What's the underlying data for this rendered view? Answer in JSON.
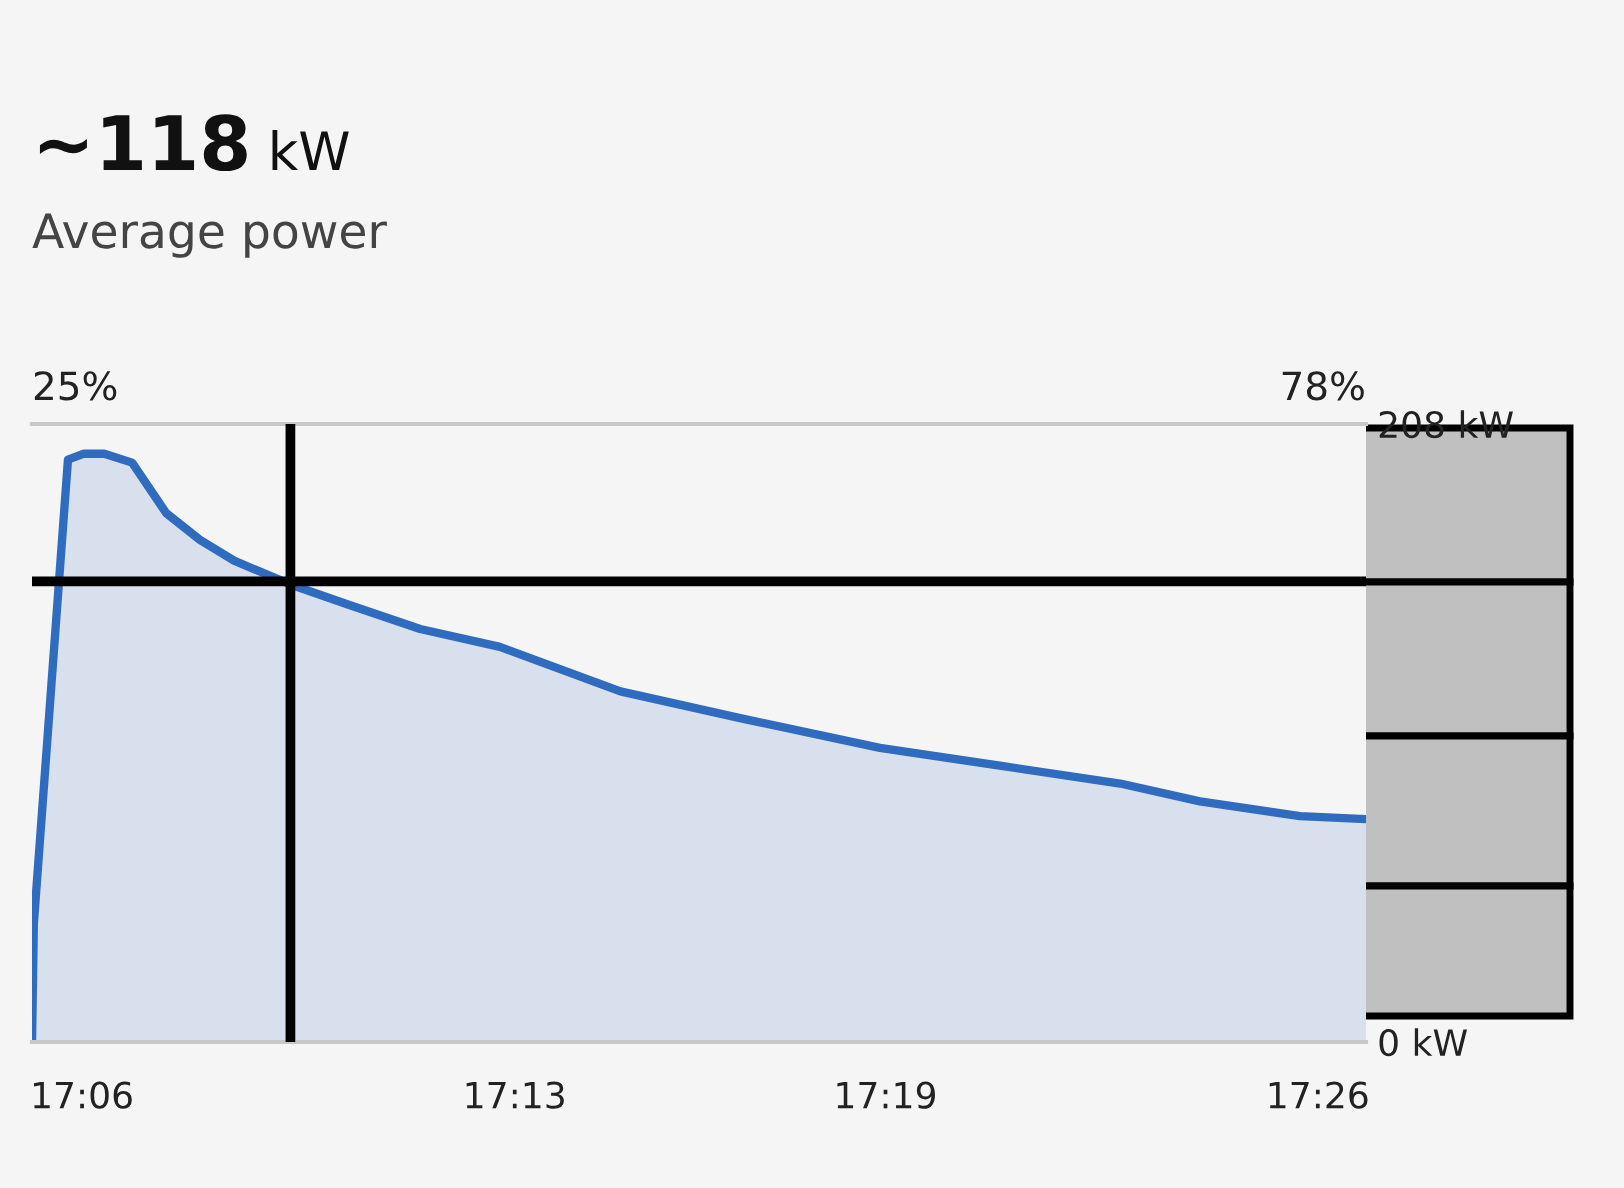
{
  "chart_data": {
    "type": "area",
    "title": "~118 kW",
    "subtitle": "Average power",
    "annotations": [
      "25%",
      "78%"
    ],
    "x": [
      17.0865,
      17.087,
      17.0962,
      17.1005,
      17.106,
      17.1135,
      17.1227,
      17.1318,
      17.141,
      17.1562,
      17.1723,
      17.1912,
      17.2127,
      17.2452,
      17.2775,
      17.3152,
      17.3475,
      17.38,
      17.4015,
      17.4285,
      17.4463
    ],
    "series": [
      {
        "color": "#2f6bbf",
        "values": [
          0,
          40,
          196,
          198,
          198,
          195,
          178,
          169,
          162,
          154,
          147,
          139,
          133,
          118,
          109,
          99,
          93,
          87,
          81,
          76,
          75
        ]
      }
    ],
    "xlim": [
      17.0865,
      17.4463
    ],
    "xticks": [
      {
        "value": 17.1,
        "label": "17:06"
      },
      {
        "value": 17.2167,
        "label": "17:13"
      },
      {
        "value": 17.3167,
        "label": "17:19"
      },
      {
        "value": 17.4333,
        "label": "17:26"
      }
    ],
    "ylim": [
      0,
      208
    ],
    "yticks": [
      {
        "value": 0,
        "label": "0 kW"
      },
      {
        "value": 208,
        "label": "208 kW"
      }
    ],
    "ref_lines": [
      {
        "axis": "y",
        "value": 155,
        "color": "#000000"
      },
      {
        "axis": "x",
        "value": 17.1562,
        "color": "#000000"
      }
    ]
  }
}
